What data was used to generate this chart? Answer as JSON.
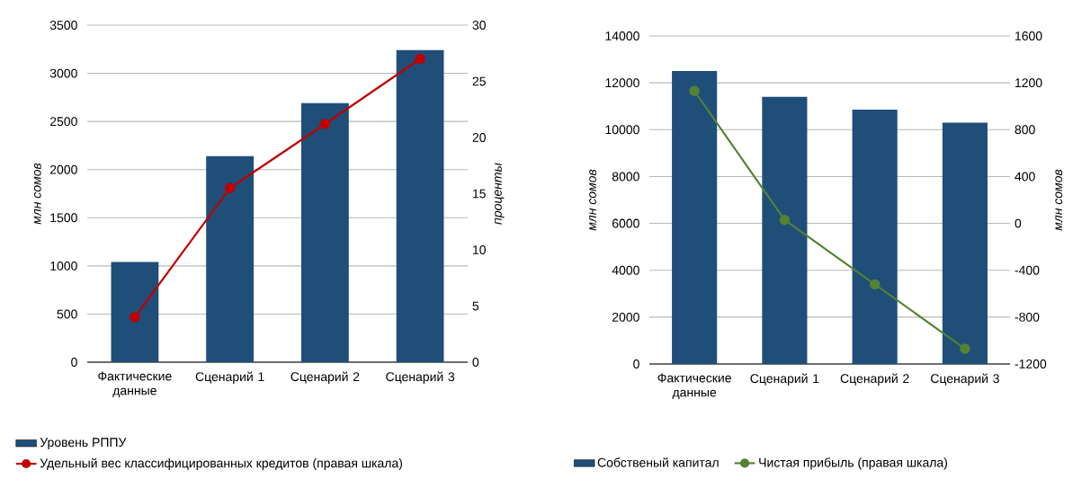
{
  "chart_data": [
    {
      "type": "bar",
      "categories": [
        "Фактические данные",
        "Сценарий 1",
        "Сценарий 2",
        "Сценарий 3"
      ],
      "ylabel": "млн сомов",
      "y2label": "проценты",
      "ylim": [
        0,
        3500
      ],
      "yticks": [
        0,
        500,
        1000,
        1500,
        2000,
        2500,
        3000,
        3500
      ],
      "y2lim": [
        0,
        30
      ],
      "y2ticks": [
        0,
        5,
        10,
        15,
        20,
        25,
        30
      ],
      "grid": "y",
      "legend": "bottom",
      "marker": "circle",
      "series": [
        {
          "name": "Уровень РППУ",
          "color": "#1f4e79",
          "values": [
            1040,
            2140,
            2690,
            3240
          ]
        },
        {
          "name": "Удельный вес классифицированных кредитов (правая шкала)",
          "type": "line",
          "axis": "y2",
          "color": "#c00000",
          "values": [
            4.0,
            15.5,
            21.2,
            27.0
          ]
        }
      ]
    },
    {
      "type": "bar",
      "categories": [
        "Фактические данные",
        "Сценарий 1",
        "Сценарий 2",
        "Сценарий 3"
      ],
      "ylabel": "млн сомов",
      "y2label": "млн сомов",
      "ylim": [
        0,
        14000
      ],
      "yticks": [
        0,
        2000,
        4000,
        6000,
        8000,
        10000,
        12000,
        14000
      ],
      "y2lim": [
        -1200,
        1600
      ],
      "y2ticks": [
        -1200,
        -800,
        -400,
        0,
        400,
        800,
        1200,
        1600
      ],
      "grid": "y",
      "legend": "bottom",
      "marker": "circle",
      "series": [
        {
          "name": "Собственый капитал",
          "color": "#1f4e79",
          "values": [
            12500,
            11400,
            10850,
            10300
          ]
        },
        {
          "name": "Чистая прибыль (правая шкала)",
          "type": "line",
          "axis": "y2",
          "color": "#548235",
          "values": [
            1130,
            30,
            -520,
            -1070
          ]
        }
      ]
    }
  ]
}
